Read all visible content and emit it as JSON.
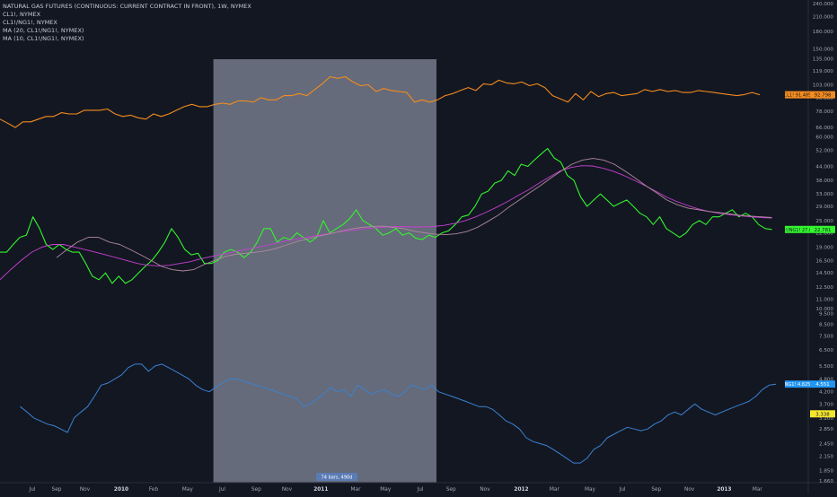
{
  "legend": {
    "title": "NATURAL GAS FUTURES (CONTINUOUS: CURRENT CONTRACT IN FRONT), 1W, NYMEX",
    "line2": "CL1!, NYMEX",
    "line3": "CL1!/NG1!, NYMEX",
    "line4": "MA (20, CL1!/NG1!, NYMEX)",
    "line5": "MA (10, CL1!/NG1!, NYMEX)"
  },
  "range_label": "74 bars, 490d",
  "price_labels": {
    "cl": "CL1! 91.485",
    "cl_value": "92.798",
    "ratio": "CL1!/NG1! 27.025",
    "ratio_value": "22.781",
    "ng": "NG1! 4.825",
    "ng_value": "4.551",
    "other_value": "3.338"
  },
  "colors": {
    "background": "#131722",
    "cl": "#f58c1e",
    "ratio": "#32f52d",
    "ng": "#3a82d2",
    "ma20": "#c640d2",
    "ma10": "#b08a9e",
    "selection": "#d6e1f5"
  },
  "chart_data": {
    "type": "line",
    "scale": "log",
    "ylim": [
      1.66,
      240
    ],
    "y_ticks": [
      "240.000",
      "210.000",
      "180.000",
      "150.000",
      "135.000",
      "119.000",
      "103.000",
      "90.000",
      "78.000",
      "66.000",
      "60.000",
      "52.000",
      "44.000",
      "38.000",
      "33.000",
      "29.000",
      "25.000",
      "22.000",
      "19.000",
      "16.500",
      "14.500",
      "12.500",
      "11.000",
      "10.000",
      "9.500",
      "8.500",
      "7.500",
      "6.500",
      "5.500",
      "4.800",
      "4.200",
      "3.700",
      "3.200",
      "2.850",
      "2.450",
      "2.150",
      "1.850",
      "1.660"
    ],
    "x_ticks": [
      "Jul",
      "Sep",
      "Nov",
      "2010",
      "Feb",
      "May",
      "Jul",
      "Sep",
      "Nov",
      "2011",
      "Mar",
      "May",
      "Jul",
      "Sep",
      "Nov",
      "2012",
      "Mar",
      "May",
      "Jul",
      "Sep",
      "Nov",
      "2013",
      "Mar"
    ],
    "x_tick_t": [
      0.04,
      0.07,
      0.105,
      0.15,
      0.19,
      0.232,
      0.275,
      0.317,
      0.355,
      0.397,
      0.44,
      0.477,
      0.52,
      0.558,
      0.6,
      0.645,
      0.686,
      0.73,
      0.77,
      0.812,
      0.853,
      0.896,
      0.937
    ],
    "selection": {
      "start": 0.264,
      "end": 0.54
    },
    "series": [
      {
        "name": "CL1!",
        "values": [
          72,
          69,
          66,
          70,
          70,
          72,
          74,
          74,
          77,
          76,
          76,
          79,
          79,
          79,
          80,
          76,
          74,
          75,
          73,
          72,
          76,
          74,
          76,
          79,
          82,
          84,
          82,
          82,
          84,
          85,
          84,
          87,
          87,
          86,
          90,
          88,
          88,
          92,
          92,
          94,
          92,
          98,
          104,
          112,
          110,
          112,
          106,
          102,
          103,
          96,
          99,
          97,
          96,
          95,
          86,
          88,
          86,
          88,
          92,
          94,
          97,
          100,
          97,
          104,
          103,
          108,
          105,
          104,
          106,
          102,
          104,
          100,
          92,
          89,
          86,
          94,
          88,
          96,
          91,
          94,
          95,
          92,
          93,
          94,
          98,
          96,
          98,
          96,
          97,
          95,
          95,
          97,
          96,
          95,
          94,
          93,
          92,
          93,
          95,
          92.8
        ]
      },
      {
        "name": "CL1!/NG1!",
        "values": [
          18,
          18,
          19.5,
          21,
          21.5,
          26,
          23,
          19.5,
          18.5,
          19.5,
          18.5,
          18,
          18,
          16,
          14,
          13.5,
          14.5,
          13,
          14,
          13,
          13.5,
          14.5,
          15.5,
          16.5,
          18,
          20,
          23,
          21,
          18.5,
          17.5,
          17.8,
          16,
          16,
          16.5,
          18,
          18.5,
          18,
          17,
          18,
          20,
          23,
          23,
          20,
          21,
          20.5,
          22,
          21,
          20,
          21,
          25,
          22,
          23,
          24,
          25.5,
          28,
          25,
          24,
          23,
          21.5,
          22,
          23,
          21.5,
          22,
          20.8,
          20.5,
          21.5,
          21,
          22,
          22.5,
          24,
          26,
          26.5,
          29,
          33,
          34,
          37,
          38,
          42,
          40,
          45,
          44,
          47,
          50,
          53,
          48,
          46,
          40,
          38,
          32,
          29,
          31,
          33,
          31,
          29,
          30,
          31,
          29,
          27,
          26,
          24,
          26,
          23,
          22,
          21,
          22,
          24,
          25,
          24,
          26,
          26,
          27,
          28,
          26,
          27,
          26,
          24,
          23,
          22.8
        ]
      },
      {
        "name": "NG1!",
        "values": [
          3.6,
          3.4,
          3.2,
          3.1,
          3.0,
          2.95,
          2.85,
          2.75,
          3.2,
          3.4,
          3.6,
          4.0,
          4.5,
          4.6,
          4.8,
          5.0,
          5.4,
          5.6,
          5.6,
          5.2,
          5.5,
          5.6,
          5.4,
          5.2,
          5.0,
          4.8,
          4.5,
          4.3,
          4.2,
          4.4,
          4.6,
          4.8,
          4.8,
          4.7,
          4.6,
          4.5,
          4.4,
          4.3,
          4.2,
          4.1,
          4.0,
          3.9,
          3.6,
          3.7,
          3.9,
          4.1,
          4.4,
          4.2,
          4.3,
          4.0,
          4.5,
          4.3,
          4.1,
          4.2,
          4.3,
          4.1,
          4.0,
          4.2,
          4.5,
          4.4,
          4.3,
          4.5,
          4.2,
          4.1,
          4.0,
          3.9,
          3.8,
          3.7,
          3.6,
          3.6,
          3.5,
          3.3,
          3.1,
          3.0,
          2.85,
          2.6,
          2.5,
          2.45,
          2.4,
          2.3,
          2.2,
          2.1,
          2.0,
          2.0,
          2.1,
          2.3,
          2.4,
          2.6,
          2.7,
          2.8,
          2.9,
          2.85,
          2.8,
          2.85,
          3.0,
          3.1,
          3.3,
          3.4,
          3.3,
          3.5,
          3.7,
          3.5,
          3.4,
          3.3,
          3.4,
          3.5,
          3.6,
          3.7,
          3.8,
          4.0,
          4.3,
          4.5,
          4.55
        ]
      },
      {
        "name": "MA (20, CL1!/NG1!, NYMEX)",
        "values": [
          13.5,
          15,
          16.5,
          18,
          19,
          19.5,
          19.5,
          19,
          18.5,
          18,
          17.5,
          17,
          16.5,
          16,
          15.7,
          15.6,
          15.7,
          16,
          16.3,
          16.8,
          17.2,
          17.6,
          18,
          18.4,
          18.8,
          19.2,
          19.7,
          20.2,
          20.6,
          21,
          21.4,
          21.8,
          22.2,
          22.5,
          22.8,
          23.1,
          23.3,
          23.5,
          23.5,
          23.4,
          23.4,
          23.5,
          23.8,
          24.3,
          25,
          26,
          27.3,
          28.8,
          30.5,
          32.5,
          34.5,
          37,
          39.5,
          42,
          43.5,
          44.3,
          44.2,
          43.2,
          41.8,
          40,
          38,
          36,
          34,
          32,
          30.5,
          29.3,
          28.3,
          27.5,
          27,
          26.6,
          26.3,
          26,
          25.8,
          25.7
        ]
      },
      {
        "name": "MA (10, CL1!/NG1!, NYMEX)",
        "values": [
          17,
          18.5,
          20,
          21,
          21,
          20,
          19.5,
          18.5,
          17.5,
          16.5,
          15.5,
          15,
          14.8,
          15,
          15.8,
          16.5,
          17.2,
          17.6,
          17.8,
          18,
          18.3,
          18.8,
          19.5,
          20.2,
          20.7,
          21.3,
          21.8,
          22.4,
          22.9,
          23.3,
          23.5,
          23.6,
          23.3,
          23.0,
          22.4,
          22.0,
          21.7,
          21.6,
          21.8,
          22.3,
          23.3,
          24.8,
          26.5,
          28.8,
          31,
          33.5,
          36,
          39,
          42,
          45,
          47,
          47.8,
          47,
          45,
          42,
          39,
          36,
          33.5,
          31,
          29.5,
          28.5,
          28,
          27.5,
          27.2,
          26.8,
          26.4,
          26.2,
          26,
          25.8
        ]
      }
    ]
  }
}
